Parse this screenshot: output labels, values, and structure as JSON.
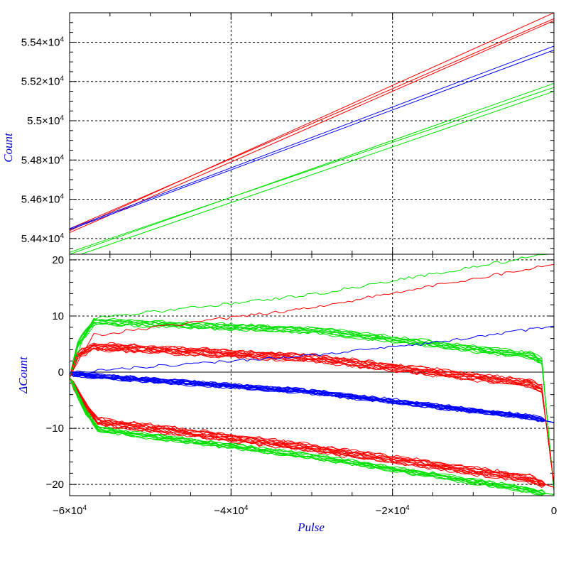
{
  "chart_data": [
    {
      "type": "line",
      "panel": "top",
      "ylabel": "Count",
      "xlim": [
        -60000,
        0
      ],
      "ylim": [
        54320,
        55550
      ],
      "grid": true,
      "yticks": [
        {
          "value": 54400,
          "label": "5.44×10",
          "exp": "4"
        },
        {
          "value": 54600,
          "label": "5.46×10",
          "exp": "4"
        },
        {
          "value": 54800,
          "label": "5.48×10",
          "exp": "4"
        },
        {
          "value": 55000,
          "label": "5.5×10",
          "exp": "4"
        },
        {
          "value": 55200,
          "label": "5.52×10",
          "exp": "4"
        },
        {
          "value": 55400,
          "label": "5.54×10",
          "exp": "4"
        }
      ],
      "series": [
        {
          "color": "#ff0000",
          "x": [
            -60000,
            0
          ],
          "y": [
            54440,
            55550
          ]
        },
        {
          "color": "#ff0000",
          "x": [
            -60000,
            0
          ],
          "y": [
            54430,
            55510
          ]
        },
        {
          "color": "#ff0000",
          "x": [
            -60000,
            0
          ],
          "y": [
            54450,
            55520
          ]
        },
        {
          "color": "#0000ff",
          "x": [
            -60000,
            0
          ],
          "y": [
            54450,
            55380
          ]
        },
        {
          "color": "#0000ff",
          "x": [
            -60000,
            0
          ],
          "y": [
            54445,
            55360
          ]
        },
        {
          "color": "#00e000",
          "x": [
            -60000,
            0
          ],
          "y": [
            54320,
            55190
          ]
        },
        {
          "color": "#00e000",
          "x": [
            -60000,
            0
          ],
          "y": [
            54300,
            55150
          ]
        },
        {
          "color": "#00e000",
          "x": [
            -60000,
            0
          ],
          "y": [
            54330,
            55170
          ]
        }
      ]
    },
    {
      "type": "line",
      "panel": "bottom",
      "ylabel": "ΔCount",
      "xlabel": "Pulse",
      "xlim": [
        -60000,
        0
      ],
      "ylim": [
        -22,
        21
      ],
      "grid": true,
      "yticks": [
        {
          "value": -20,
          "label": "−20"
        },
        {
          "value": -10,
          "label": "−10"
        },
        {
          "value": 0,
          "label": "0"
        },
        {
          "value": 10,
          "label": "10"
        },
        {
          "value": 20,
          "label": "20"
        }
      ],
      "xticks": [
        {
          "value": -60000,
          "label": "−6×10",
          "exp": "4"
        },
        {
          "value": -40000,
          "label": "−4×10",
          "exp": "4"
        },
        {
          "value": -20000,
          "label": "−2×10",
          "exp": "4"
        },
        {
          "value": 0,
          "label": "0"
        }
      ],
      "bands": [
        {
          "color": "#00e000",
          "count": 9,
          "x": [
            -60000,
            -59000,
            -57000,
            -30000,
            -3000,
            -1500,
            0
          ],
          "y": [
            -1,
            5,
            9,
            7.5,
            3,
            2,
            -21
          ],
          "spread": 0.5,
          "noise": 0.25
        },
        {
          "color": "#ff0000",
          "count": 12,
          "x": [
            -60000,
            -59000,
            -57000,
            -30000,
            -3000,
            -1500,
            0
          ],
          "y": [
            -1,
            3,
            4.6,
            2.5,
            -2,
            -3,
            -20
          ],
          "spread": 0.6,
          "noise": 0.3
        },
        {
          "color": "#0000ff",
          "count": 14,
          "x": [
            -60000,
            -57000,
            -30000,
            -3000,
            0
          ],
          "y": [
            -0.3,
            -0.7,
            -3.5,
            -8,
            -9
          ],
          "spread": 0.35,
          "noise": 0.25
        },
        {
          "color": "#ff0000",
          "count": 12,
          "x": [
            -60000,
            -58000,
            -56500,
            -30000,
            -3000,
            -1500,
            0
          ],
          "y": [
            -1,
            -6,
            -8.8,
            -13.5,
            -19,
            -19.8,
            -20.5
          ],
          "spread": 0.6,
          "noise": 0.3
        },
        {
          "color": "#00e000",
          "count": 9,
          "x": [
            -60000,
            -58000,
            -56500,
            -30000,
            -3000,
            -1500,
            0
          ],
          "y": [
            -1,
            -7,
            -10.2,
            -15,
            -21,
            -21.5,
            -21.8
          ],
          "spread": 0.4,
          "noise": 0.25
        }
      ],
      "singles": [
        {
          "color": "#00e000",
          "x": [
            -60000,
            -58500,
            -57000,
            -30000,
            0
          ],
          "y": [
            -1,
            5,
            9.6,
            13.8,
            21.2
          ],
          "noise": 0.3
        },
        {
          "color": "#ff0000",
          "x": [
            -60000,
            -58500,
            -57000,
            -30000,
            0
          ],
          "y": [
            -1,
            3,
            6.6,
            11.5,
            19.2
          ],
          "noise": 0.3
        },
        {
          "color": "#0000ff",
          "x": [
            -60000,
            -30000,
            -15000,
            0
          ],
          "y": [
            0,
            3,
            5.2,
            8.2
          ],
          "noise": 0.25
        }
      ]
    }
  ]
}
